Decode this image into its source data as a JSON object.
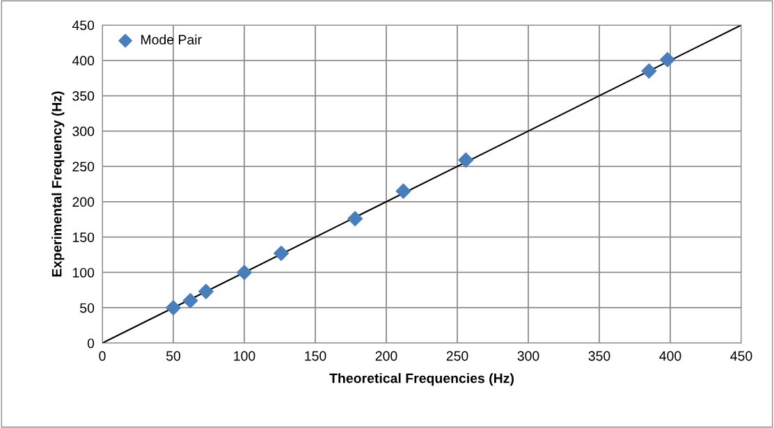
{
  "chart_data": {
    "type": "scatter",
    "xlabel": "Theoretical Frequencies (Hz)",
    "ylabel": "Experimental Frequency (Hz)",
    "x": [
      50,
      62,
      73,
      100,
      126,
      178,
      212,
      256,
      385,
      398
    ],
    "series": [
      {
        "name": "Mode Pair",
        "color": "#4a7ebb",
        "marker": "diamond",
        "values": [
          50,
          60,
          73,
          100,
          127,
          176,
          215,
          259,
          385,
          401
        ]
      },
      {
        "type": "line",
        "color": "#000000",
        "x": [
          0,
          450
        ],
        "values": [
          0,
          450
        ],
        "marker": "none"
      }
    ],
    "xlim": [
      0,
      450
    ],
    "xticks": [
      0,
      50,
      100,
      150,
      200,
      250,
      300,
      350,
      400,
      450
    ],
    "ylim": [
      0,
      450
    ],
    "yticks": [
      0,
      50,
      100,
      150,
      200,
      250,
      300,
      350,
      400,
      450
    ],
    "grid": true,
    "legend": "top left"
  }
}
